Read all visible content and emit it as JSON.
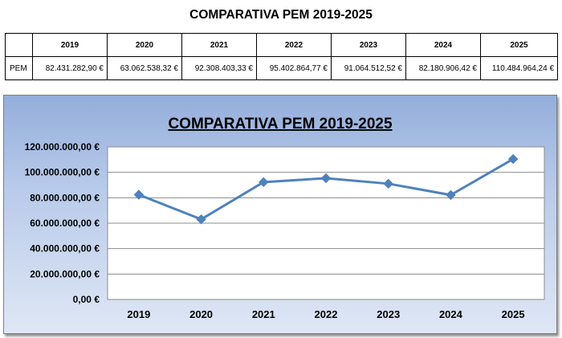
{
  "title": "COMPARATIVA PEM 2019-2025",
  "table": {
    "row_label": "PEM",
    "years": [
      "2019",
      "2020",
      "2021",
      "2022",
      "2023",
      "2024",
      "2025"
    ],
    "values": [
      "82.431.282,90 €",
      "63.062.538,32 €",
      "92.308.403,33 €",
      "95.402.864,77 €",
      "91.064.512,52 €",
      "82.180.906,42 €",
      "110.484.964,24 €"
    ]
  },
  "chart_data": {
    "type": "line",
    "title": "COMPARATIVA PEM 2019-2025",
    "categories": [
      "2019",
      "2020",
      "2021",
      "2022",
      "2023",
      "2024",
      "2025"
    ],
    "series": [
      {
        "values": [
          82431282.9,
          63062538.32,
          92308403.33,
          95402864.77,
          91064512.52,
          82180906.42,
          110484964.24
        ]
      }
    ],
    "ylim": [
      0,
      120000000
    ],
    "yticks": [
      0,
      20000000,
      40000000,
      60000000,
      80000000,
      100000000,
      120000000
    ],
    "ytick_labels": [
      "0,00 €",
      "20.000.000,00 €",
      "40.000.000,00 €",
      "60.000.000,00 €",
      "80.000.000,00 €",
      "100.000.000,00 €",
      "120.000.000,00 €"
    ],
    "grid": true,
    "legend": "none",
    "line_color": "#4f81bd",
    "marker": "diamond"
  }
}
